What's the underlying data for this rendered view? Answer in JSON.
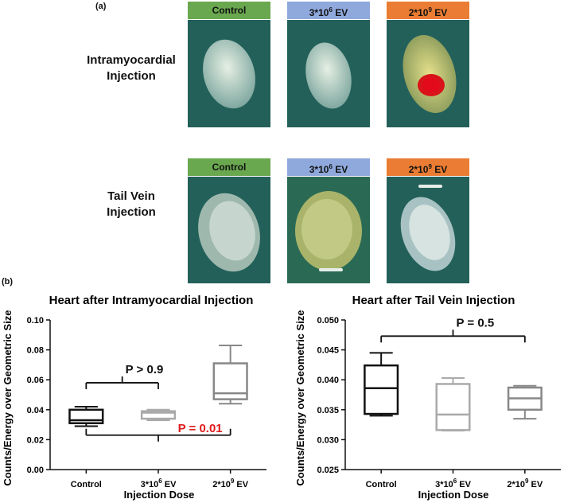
{
  "panel_a": {
    "label": "(a)",
    "columns": [
      {
        "base": "Control",
        "sup": "",
        "tail": "",
        "color": "#6aa84f"
      },
      {
        "base": "3*10",
        "sup": "6",
        "tail": " EV",
        "color": "#8fa9dc"
      },
      {
        "base": "2*10",
        "sup": "9",
        "tail": " EV",
        "color": "#ea7d33"
      }
    ],
    "rows": [
      {
        "line1": "Intramyocardial",
        "line2": "Injection"
      },
      {
        "line1": "Tail Vein",
        "line2": "Injection"
      }
    ]
  },
  "panel_b": {
    "label": "(b)"
  },
  "chart_data": [
    {
      "type": "box",
      "title": "Heart after Intramyocardial Injection",
      "xlabel": "Injection Dose",
      "ylabel": "Counts/Energy over Geometric Size",
      "ylim": [
        0.0,
        0.1
      ],
      "yticks": [
        "0.00",
        "0.02",
        "0.04",
        "0.06",
        "0.08",
        "0.10"
      ],
      "categories": [
        "Control",
        "3*10^6 EV",
        "2*10^9 EV"
      ],
      "category_labels": [
        {
          "base": "Control",
          "sup": "",
          "tail": ""
        },
        {
          "base": "3*10",
          "sup": "6",
          "tail": " EV"
        },
        {
          "base": "2*10",
          "sup": "9",
          "tail": " EV"
        }
      ],
      "boxes": [
        {
          "min": 0.029,
          "q1": 0.031,
          "median": 0.033,
          "q3": 0.04,
          "max": 0.042,
          "color": "#111111"
        },
        {
          "min": 0.033,
          "q1": 0.034,
          "median": 0.038,
          "q3": 0.039,
          "max": 0.04,
          "color": "#aaaaaa"
        },
        {
          "min": 0.044,
          "q1": 0.047,
          "median": 0.051,
          "q3": 0.071,
          "max": 0.083,
          "color": "#888888"
        }
      ],
      "annotations": [
        {
          "text": "P > 0.9",
          "color": "#111111",
          "from": 0,
          "to": 1,
          "y": 0.058,
          "direction": "up"
        },
        {
          "text": "P = 0.01",
          "color": "#e01b1b",
          "from": 0,
          "to": 2,
          "y": 0.023,
          "direction": "down"
        }
      ]
    },
    {
      "type": "box",
      "title": "Heart after Tail Vein Injection",
      "xlabel": "Injection Dose",
      "ylabel": "Counts/Energy over Geometric Size",
      "ylim": [
        0.025,
        0.05
      ],
      "yticks": [
        "0.025",
        "0.030",
        "0.035",
        "0.040",
        "0.045",
        "0.050"
      ],
      "categories": [
        "Control",
        "3*10^6 EV",
        "2*10^9 EV"
      ],
      "category_labels": [
        {
          "base": "Control",
          "sup": "",
          "tail": ""
        },
        {
          "base": "3*10",
          "sup": "6",
          "tail": " EV"
        },
        {
          "base": "2*10",
          "sup": "9",
          "tail": " EV"
        }
      ],
      "boxes": [
        {
          "min": 0.034,
          "q1": 0.0343,
          "median": 0.0386,
          "q3": 0.0424,
          "max": 0.0445,
          "color": "#111111"
        },
        {
          "min": 0.0315,
          "q1": 0.0316,
          "median": 0.0342,
          "q3": 0.0393,
          "max": 0.0403,
          "color": "#aaaaaa"
        },
        {
          "min": 0.0335,
          "q1": 0.035,
          "median": 0.0369,
          "q3": 0.0387,
          "max": 0.039,
          "color": "#888888"
        }
      ],
      "annotations": [
        {
          "text": "P = 0.5",
          "color": "#111111",
          "from": 0,
          "to": 2,
          "y": 0.0473,
          "direction": "up"
        }
      ]
    }
  ]
}
